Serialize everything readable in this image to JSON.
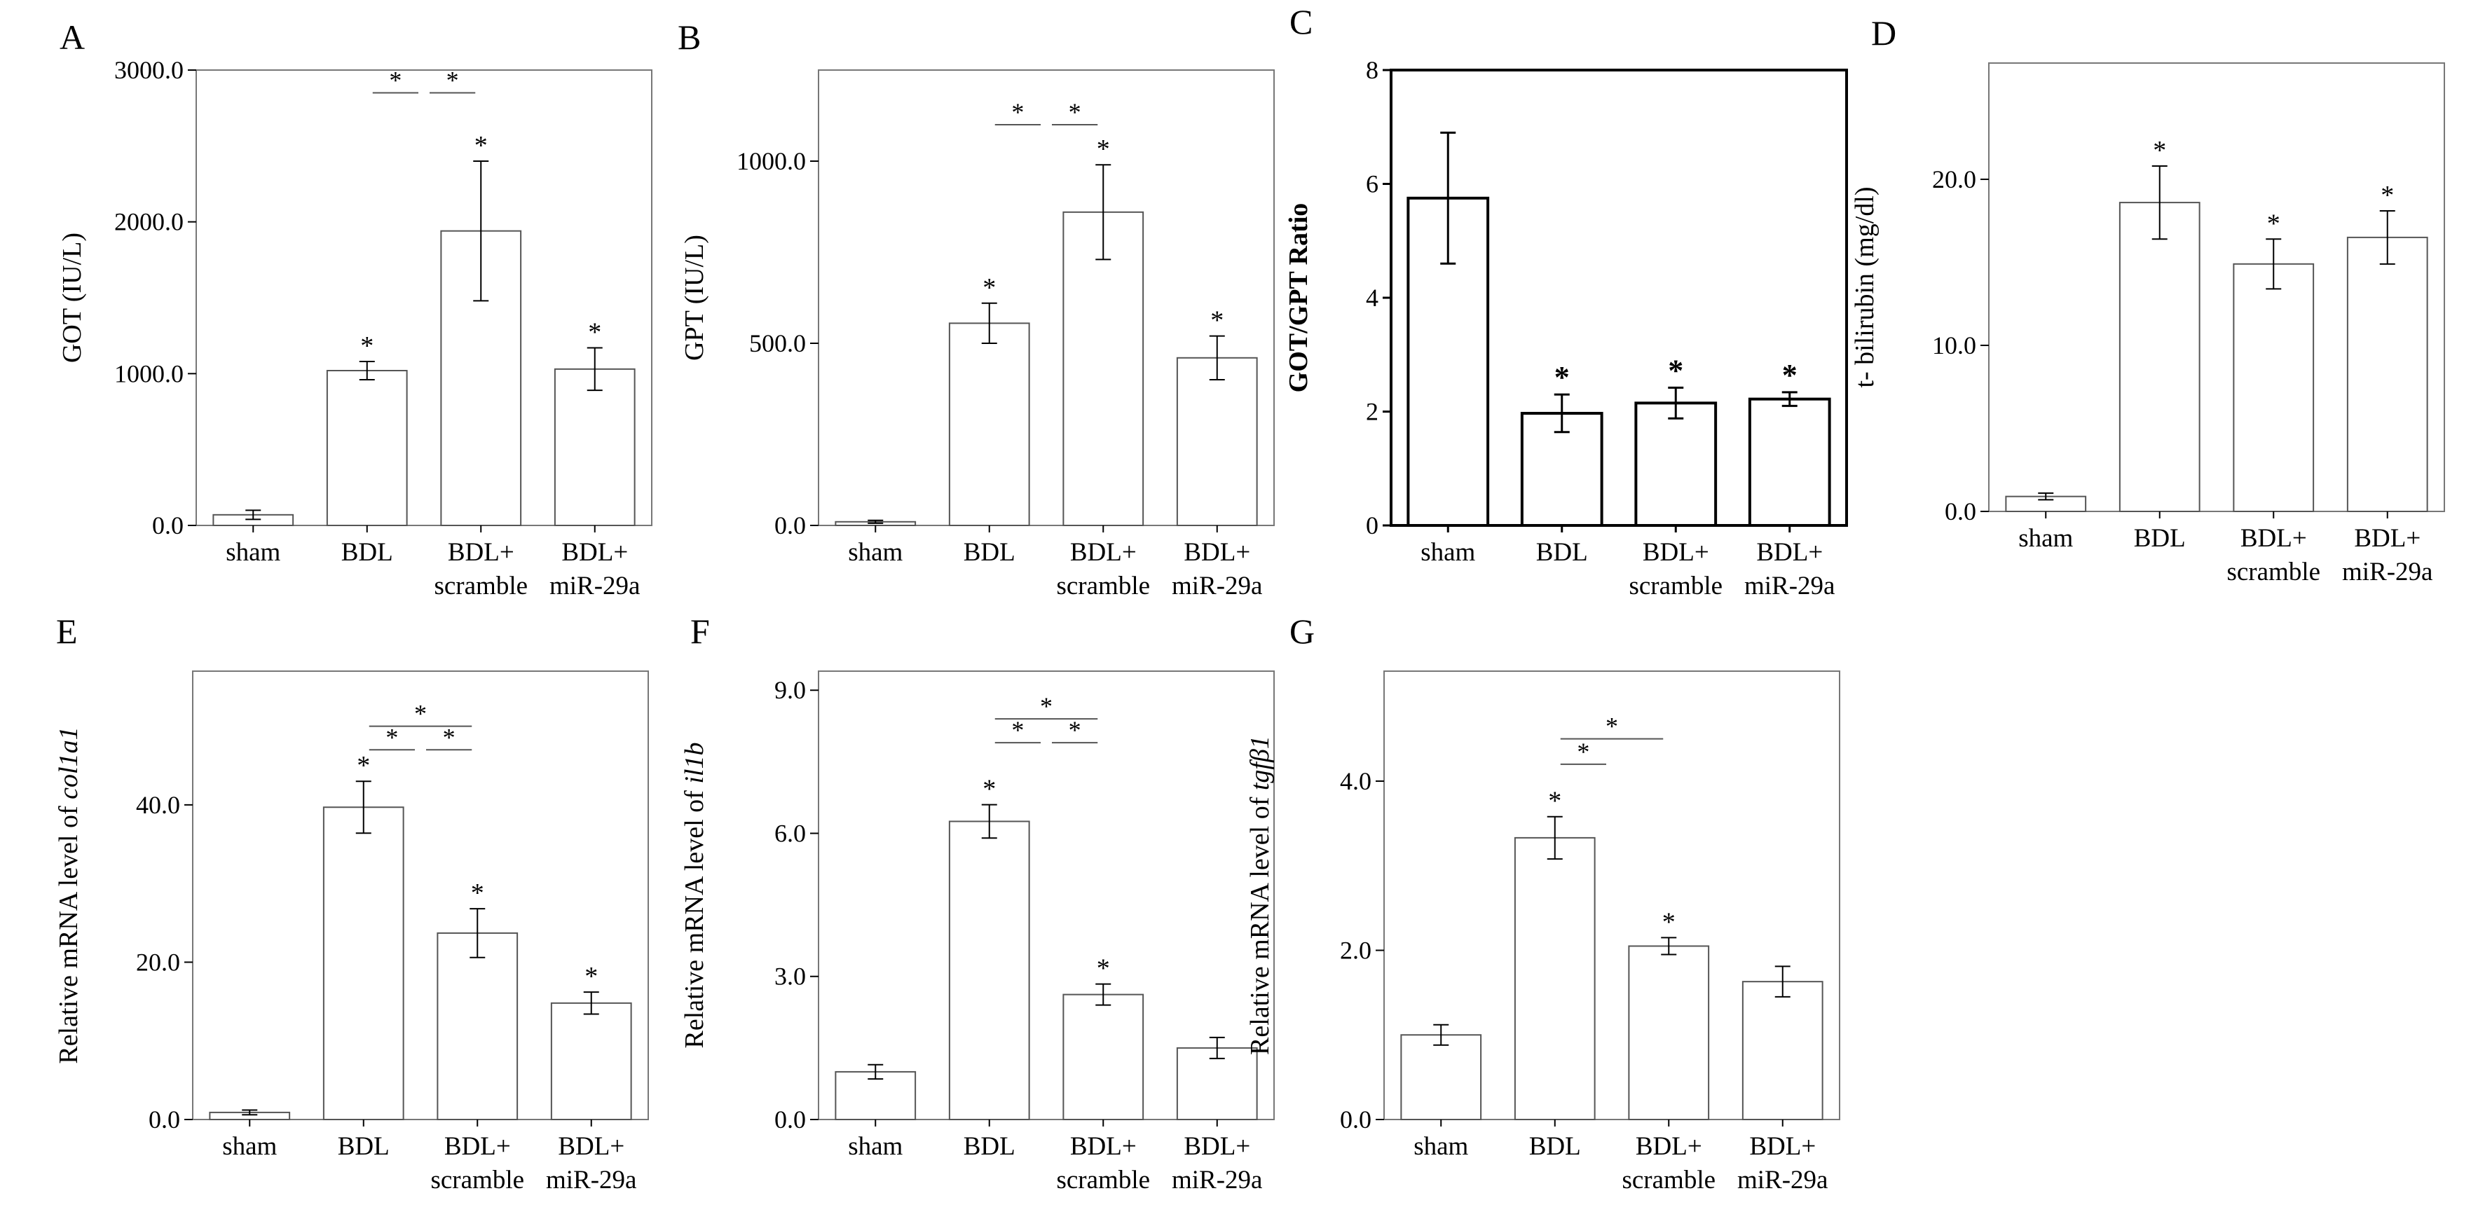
{
  "figure": {
    "categories": [
      {
        "line1": "sham",
        "line2": ""
      },
      {
        "line1": "BDL",
        "line2": ""
      },
      {
        "line1": "BDL+",
        "line2": "scramble"
      },
      {
        "line1": "BDL+",
        "line2": "miR-29a"
      }
    ],
    "sig_marker": "*"
  },
  "chart_data": [
    {
      "panel": "A",
      "type": "bar",
      "ylabel": "GOT  (IU/L)",
      "ylim": [
        0,
        3000
      ],
      "yticks": [
        "0.0",
        "1000.0",
        "2000.0",
        "3000.0"
      ],
      "values": [
        70,
        1020,
        1940,
        1030
      ],
      "errors": [
        30,
        60,
        460,
        140
      ],
      "sig": [
        false,
        true,
        true,
        true
      ],
      "brackets": [
        {
          "from": 1.5,
          "to": 2.0,
          "level": 2850
        },
        {
          "from": 2.0,
          "to": 2.5,
          "level": 2850
        }
      ]
    },
    {
      "panel": "B",
      "type": "bar",
      "ylabel": "GPT (IU/L)",
      "ylim": [
        0,
        1250
      ],
      "yticks": [
        "0.0",
        "500.0",
        "1000.0"
      ],
      "values": [
        10,
        555,
        860,
        460
      ],
      "errors": [
        4,
        55,
        130,
        60
      ],
      "sig": [
        false,
        true,
        true,
        true
      ],
      "brackets": [
        {
          "from": 1.5,
          "to": 2.0,
          "level": 1100
        },
        {
          "from": 2.0,
          "to": 2.5,
          "level": 1100
        }
      ]
    },
    {
      "panel": "C",
      "type": "bar",
      "ylabel": "GOT/GPT Ratio",
      "ylim": [
        0,
        8
      ],
      "yticks": [
        "0",
        "2",
        "4",
        "6",
        "8"
      ],
      "values": [
        5.75,
        1.97,
        2.15,
        2.22
      ],
      "errors": [
        1.15,
        0.33,
        0.27,
        0.12
      ],
      "sig": [
        false,
        true,
        true,
        true
      ],
      "brackets": []
    },
    {
      "panel": "D",
      "type": "bar",
      "ylabel": "t- bilirubin (mg/dl)",
      "ylim": [
        0,
        27
      ],
      "yticks": [
        "0.0",
        "10.0",
        "20.0"
      ],
      "values": [
        0.9,
        18.6,
        14.9,
        16.5
      ],
      "errors": [
        0.2,
        2.2,
        1.5,
        1.6
      ],
      "sig": [
        false,
        true,
        true,
        true
      ],
      "brackets": []
    },
    {
      "panel": "E",
      "type": "bar",
      "ylabel_prefix": "Relative mRNA level of ",
      "ylabel_gene": "col1a1",
      "ylim": [
        0,
        57
      ],
      "yticks": [
        "0.0",
        "20.0",
        "40.0"
      ],
      "values": [
        0.9,
        39.7,
        23.7,
        14.8
      ],
      "errors": [
        0.3,
        3.3,
        3.1,
        1.4
      ],
      "sig": [
        false,
        true,
        true,
        true
      ],
      "brackets": [
        {
          "from": 1.5,
          "to": 2.0,
          "level": 47
        },
        {
          "from": 2.0,
          "to": 2.5,
          "level": 47
        },
        {
          "from": 1.5,
          "to": 2.5,
          "level": 50
        }
      ]
    },
    {
      "panel": "F",
      "type": "bar",
      "ylabel_prefix": "Relative mRNA level of ",
      "ylabel_gene": "il1b",
      "ylim": [
        0,
        9.4
      ],
      "yticks": [
        "0.0",
        "3.0",
        "6.0",
        "9.0"
      ],
      "values": [
        1.0,
        6.25,
        2.62,
        1.5
      ],
      "errors": [
        0.15,
        0.35,
        0.22,
        0.22
      ],
      "sig": [
        false,
        true,
        true,
        false
      ],
      "brackets": [
        {
          "from": 1.5,
          "to": 2.0,
          "level": 7.9
        },
        {
          "from": 2.0,
          "to": 2.5,
          "level": 7.9
        },
        {
          "from": 1.5,
          "to": 2.5,
          "level": 8.4
        }
      ]
    },
    {
      "panel": "G",
      "type": "bar",
      "ylabel_prefix": "Relative mRNA level of ",
      "ylabel_gene": "tgfβ1",
      "ylim": [
        0,
        5.3
      ],
      "yticks": [
        "0.0",
        "2.0",
        "4.0"
      ],
      "values": [
        1.0,
        3.33,
        2.05,
        1.63
      ],
      "errors": [
        0.12,
        0.25,
        0.1,
        0.18
      ],
      "sig": [
        false,
        true,
        true,
        false
      ],
      "brackets": [
        {
          "from": 1.5,
          "to": 2.0,
          "level": 4.2
        },
        {
          "from": 1.5,
          "to": 2.5,
          "level": 4.5
        }
      ]
    }
  ]
}
